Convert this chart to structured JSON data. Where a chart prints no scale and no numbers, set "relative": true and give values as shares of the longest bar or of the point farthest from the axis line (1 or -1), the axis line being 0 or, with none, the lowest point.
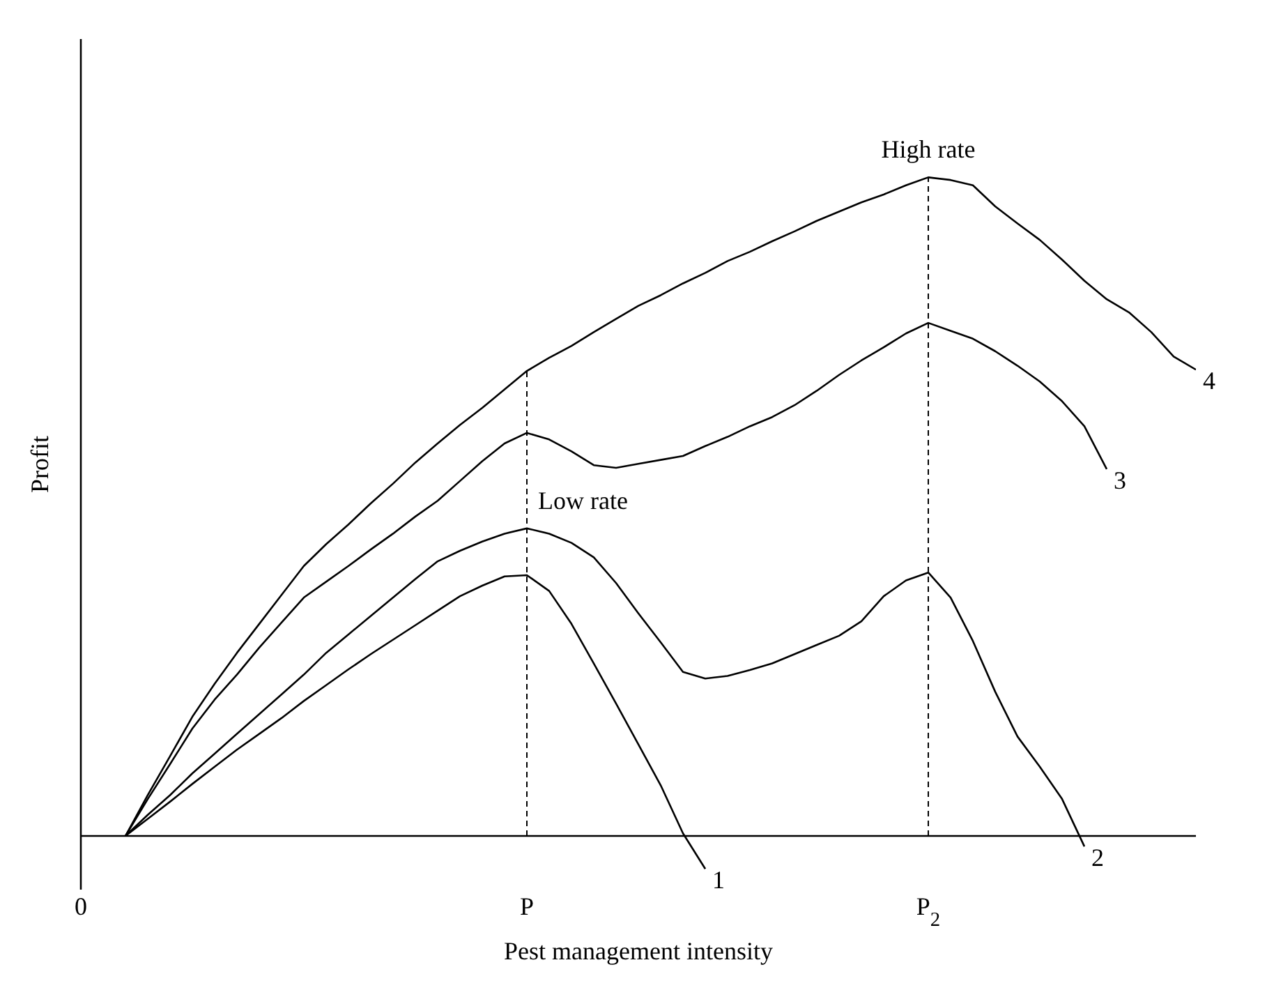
{
  "chart_data": {
    "type": "line",
    "relative": true,
    "xlabel": "Pest management intensity",
    "ylabel": "Profit",
    "categories": [
      "0",
      null,
      null,
      null,
      null,
      null,
      null,
      null,
      null,
      null,
      null,
      null,
      null,
      null,
      null,
      null,
      null,
      null,
      null,
      null,
      "P",
      null,
      null,
      null,
      null,
      null,
      null,
      null,
      null,
      null,
      null,
      null,
      null,
      null,
      null,
      null,
      null,
      null,
      "P$_{2}$",
      null,
      null,
      null,
      null,
      null,
      null,
      null,
      null,
      null,
      null,
      null,
      null
    ],
    "ref_lines": [
      {
        "axis": "x",
        "value": "P",
        "line_style": "dashed",
        "color": "#000000"
      },
      {
        "axis": "x",
        "value": "P$_{2}$",
        "line_style": "dashed",
        "color": "#000000"
      }
    ],
    "annotations": [
      {
        "text": "High rate",
        "x": "P$_{2}$",
        "y": 1
      },
      {
        "text": "Low rate",
        "x": "P",
        "y": 0.467
      }
    ],
    "series": [
      {
        "name": "1",
        "color": "#000000",
        "values": [
          null,
          null,
          0,
          0.026,
          0.052,
          0.079,
          0.105,
          0.131,
          0.155,
          0.179,
          0.205,
          0.229,
          0.253,
          0.276,
          0.298,
          0.32,
          0.342,
          0.364,
          0.38,
          0.394,
          0.396,
          0.372,
          0.322,
          0.262,
          0.201,
          0.139,
          0.077,
          0.004,
          -0.05,
          null,
          null,
          null,
          null,
          null,
          null,
          null,
          null,
          null,
          null,
          null,
          null,
          null,
          null,
          null,
          null,
          null,
          null,
          null,
          null,
          null,
          null
        ]
      },
      {
        "name": "2",
        "color": "#000000",
        "values": [
          null,
          null,
          0,
          0.032,
          0.062,
          0.095,
          0.125,
          0.155,
          0.185,
          0.215,
          0.245,
          0.278,
          0.306,
          0.334,
          0.362,
          0.39,
          0.417,
          0.433,
          0.447,
          0.459,
          0.467,
          0.459,
          0.445,
          0.423,
          0.384,
          0.338,
          0.294,
          0.249,
          0.239,
          0.243,
          0.252,
          0.262,
          0.276,
          0.29,
          0.304,
          0.326,
          0.364,
          0.388,
          0.4,
          0.362,
          0.296,
          0.219,
          0.151,
          0.105,
          0.056,
          -0.016,
          null,
          null,
          null,
          null,
          null
        ]
      },
      {
        "name": "3",
        "color": "#000000",
        "values": [
          null,
          null,
          0,
          0.056,
          0.109,
          0.163,
          0.207,
          0.245,
          0.286,
          0.324,
          0.362,
          0.386,
          0.41,
          0.435,
          0.459,
          0.485,
          0.509,
          0.539,
          0.569,
          0.596,
          0.612,
          0.602,
          0.584,
          0.563,
          0.559,
          0.565,
          0.571,
          0.577,
          0.592,
          0.606,
          0.622,
          0.636,
          0.654,
          0.676,
          0.7,
          0.722,
          0.742,
          0.763,
          0.779,
          0.767,
          0.755,
          0.736,
          0.714,
          0.69,
          0.66,
          0.622,
          0.557,
          null,
          null,
          null,
          null
        ]
      },
      {
        "name": "4",
        "color": "#000000",
        "values": [
          null,
          null,
          0,
          0.062,
          0.121,
          0.181,
          0.231,
          0.278,
          0.322,
          0.366,
          0.41,
          0.443,
          0.473,
          0.505,
          0.535,
          0.567,
          0.596,
          0.624,
          0.65,
          0.678,
          0.706,
          0.726,
          0.744,
          0.765,
          0.785,
          0.805,
          0.821,
          0.839,
          0.855,
          0.873,
          0.887,
          0.903,
          0.918,
          0.934,
          0.948,
          0.962,
          0.974,
          0.988,
          1,
          0.996,
          0.988,
          0.956,
          0.93,
          0.905,
          0.875,
          0.843,
          0.815,
          0.795,
          0.765,
          0.728,
          0.708
        ]
      }
    ]
  }
}
